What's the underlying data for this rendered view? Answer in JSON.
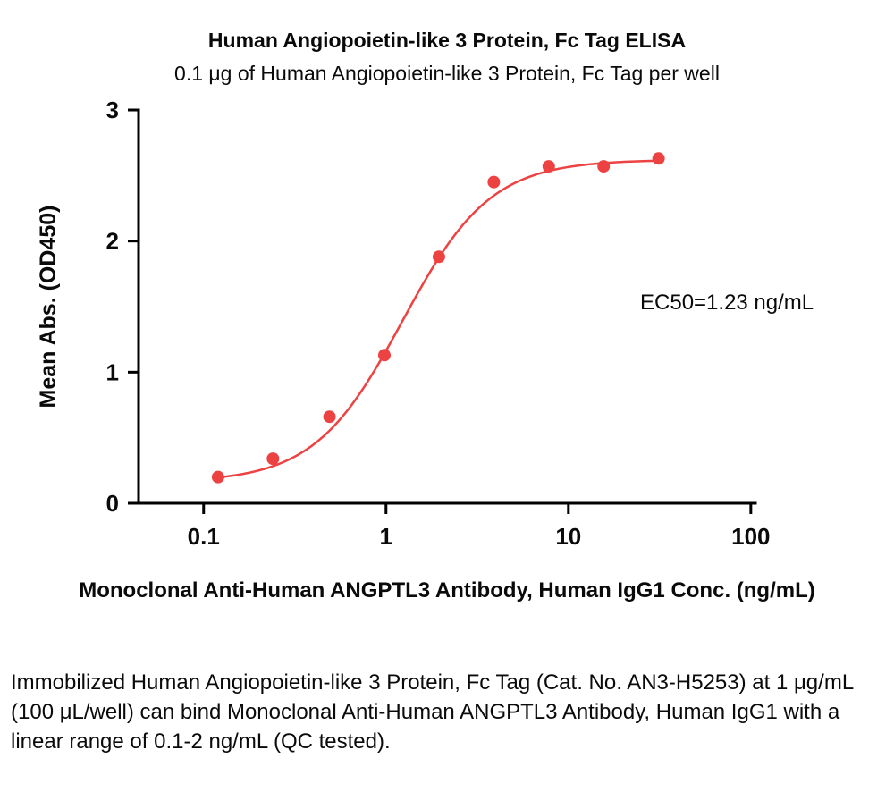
{
  "title": "Human Angiopoietin-like 3 Protein, Fc Tag ELISA",
  "subtitle": "0.1 μg of Human Angiopoietin-like 3 Protein, Fc Tag per well",
  "annotation": "EC50=1.23 ng/mL",
  "caption": "Immobilized Human Angiopoietin-like 3 Protein, Fc Tag (Cat. No. AN3-H5253) at 1 μg/mL (100 μL/well) can bind Monoclonal Anti-Human ANGPTL3 Antibody, Human IgG1 with a linear range of 0.1-2 ng/mL (QC tested).",
  "chart_data": {
    "type": "scatter",
    "title": "Human Angiopoietin-like 3 Protein, Fc Tag ELISA",
    "xlabel": "Monoclonal Anti-Human ANGPTL3 Antibody, Human IgG1 Conc. (ng/mL)",
    "ylabel": "Mean Abs. (OD450)",
    "xscale": "log",
    "x": [
      0.12,
      0.24,
      0.49,
      0.98,
      1.95,
      3.9,
      7.8,
      15.6,
      31.2
    ],
    "y": [
      0.2,
      0.34,
      0.66,
      1.13,
      1.88,
      2.45,
      2.57,
      2.57,
      2.63
    ],
    "xticks": [
      0.1,
      1,
      10,
      100
    ],
    "xtick_labels": [
      "0.1",
      "1",
      "10",
      "100"
    ],
    "yticks": [
      0,
      1,
      2,
      3
    ],
    "ytick_labels": [
      "0",
      "1",
      "2",
      "3"
    ],
    "xlim": [
      0.044,
      106
    ],
    "ylim": [
      0,
      3
    ],
    "ec50": 1.23,
    "fit": {
      "type": "4PL",
      "bottom": 0.16,
      "top": 2.62,
      "ec50": 1.23,
      "hill": 1.8,
      "x_start": 0.115,
      "x_end": 31.5
    },
    "grid": false,
    "legend": "none",
    "point_color": "#ED4242",
    "line_color": "#ED4242",
    "axis_color": "#000000"
  }
}
